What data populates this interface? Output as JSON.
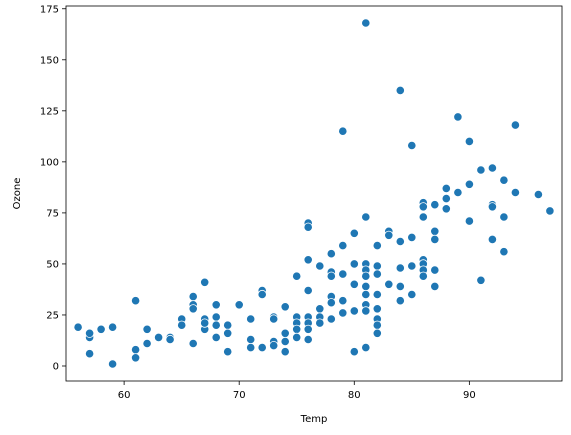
{
  "chart_data": {
    "type": "scatter",
    "title": "",
    "xlabel": "Temp",
    "ylabel": "Ozone",
    "xlim": [
      54.95,
      98.05
    ],
    "ylim": [
      -7.35,
      176.35
    ],
    "xticks": [
      60,
      70,
      80,
      90
    ],
    "yticks": [
      0,
      25,
      50,
      75,
      100,
      125,
      150,
      175
    ],
    "xtick_labels": [
      "60",
      "70",
      "80",
      "90"
    ],
    "ytick_labels": [
      "0",
      "25",
      "50",
      "75",
      "100",
      "125",
      "150",
      "175"
    ],
    "grid": false,
    "legend": "none",
    "marker_color": "#1f77b4",
    "points": [
      {
        "x": 56,
        "y": 19
      },
      {
        "x": 57,
        "y": 14
      },
      {
        "x": 57,
        "y": 16
      },
      {
        "x": 57,
        "y": 6
      },
      {
        "x": 58,
        "y": 18
      },
      {
        "x": 59,
        "y": 19
      },
      {
        "x": 59,
        "y": 1
      },
      {
        "x": 61,
        "y": 32
      },
      {
        "x": 61,
        "y": 8
      },
      {
        "x": 61,
        "y": 4
      },
      {
        "x": 62,
        "y": 18
      },
      {
        "x": 62,
        "y": 11
      },
      {
        "x": 63,
        "y": 14
      },
      {
        "x": 64,
        "y": 14
      },
      {
        "x": 64,
        "y": 13
      },
      {
        "x": 65,
        "y": 23
      },
      {
        "x": 65,
        "y": 20
      },
      {
        "x": 66,
        "y": 34
      },
      {
        "x": 66,
        "y": 30
      },
      {
        "x": 66,
        "y": 28
      },
      {
        "x": 66,
        "y": 11
      },
      {
        "x": 67,
        "y": 41
      },
      {
        "x": 67,
        "y": 23
      },
      {
        "x": 67,
        "y": 18
      },
      {
        "x": 67,
        "y": 21
      },
      {
        "x": 68,
        "y": 30
      },
      {
        "x": 68,
        "y": 24
      },
      {
        "x": 68,
        "y": 20
      },
      {
        "x": 68,
        "y": 14
      },
      {
        "x": 69,
        "y": 20
      },
      {
        "x": 69,
        "y": 16
      },
      {
        "x": 69,
        "y": 7
      },
      {
        "x": 70,
        "y": 30
      },
      {
        "x": 71,
        "y": 23
      },
      {
        "x": 71,
        "y": 13
      },
      {
        "x": 71,
        "y": 9
      },
      {
        "x": 72,
        "y": 37
      },
      {
        "x": 72,
        "y": 35
      },
      {
        "x": 72,
        "y": 9
      },
      {
        "x": 73,
        "y": 24
      },
      {
        "x": 73,
        "y": 23
      },
      {
        "x": 73,
        "y": 12
      },
      {
        "x": 73,
        "y": 10
      },
      {
        "x": 74,
        "y": 29
      },
      {
        "x": 74,
        "y": 16
      },
      {
        "x": 74,
        "y": 12
      },
      {
        "x": 74,
        "y": 7
      },
      {
        "x": 75,
        "y": 44
      },
      {
        "x": 75,
        "y": 24
      },
      {
        "x": 75,
        "y": 21
      },
      {
        "x": 75,
        "y": 18
      },
      {
        "x": 75,
        "y": 14
      },
      {
        "x": 76,
        "y": 70
      },
      {
        "x": 76,
        "y": 68
      },
      {
        "x": 76,
        "y": 52
      },
      {
        "x": 76,
        "y": 37
      },
      {
        "x": 76,
        "y": 24
      },
      {
        "x": 76,
        "y": 21
      },
      {
        "x": 76,
        "y": 18
      },
      {
        "x": 76,
        "y": 13
      },
      {
        "x": 77,
        "y": 49
      },
      {
        "x": 77,
        "y": 28
      },
      {
        "x": 77,
        "y": 24
      },
      {
        "x": 77,
        "y": 21
      },
      {
        "x": 78,
        "y": 55
      },
      {
        "x": 78,
        "y": 46
      },
      {
        "x": 78,
        "y": 44
      },
      {
        "x": 78,
        "y": 34
      },
      {
        "x": 78,
        "y": 31
      },
      {
        "x": 78,
        "y": 23
      },
      {
        "x": 79,
        "y": 115
      },
      {
        "x": 79,
        "y": 59
      },
      {
        "x": 79,
        "y": 45
      },
      {
        "x": 79,
        "y": 32
      },
      {
        "x": 79,
        "y": 26
      },
      {
        "x": 80,
        "y": 65
      },
      {
        "x": 80,
        "y": 50
      },
      {
        "x": 80,
        "y": 40
      },
      {
        "x": 80,
        "y": 27
      },
      {
        "x": 80,
        "y": 7
      },
      {
        "x": 81,
        "y": 168
      },
      {
        "x": 81,
        "y": 73
      },
      {
        "x": 81,
        "y": 50
      },
      {
        "x": 81,
        "y": 47
      },
      {
        "x": 81,
        "y": 44
      },
      {
        "x": 81,
        "y": 39
      },
      {
        "x": 81,
        "y": 35
      },
      {
        "x": 81,
        "y": 30
      },
      {
        "x": 81,
        "y": 27
      },
      {
        "x": 81,
        "y": 9
      },
      {
        "x": 82,
        "y": 59
      },
      {
        "x": 82,
        "y": 49
      },
      {
        "x": 82,
        "y": 45
      },
      {
        "x": 82,
        "y": 35
      },
      {
        "x": 82,
        "y": 28
      },
      {
        "x": 82,
        "y": 23
      },
      {
        "x": 82,
        "y": 20
      },
      {
        "x": 82,
        "y": 16
      },
      {
        "x": 83,
        "y": 66
      },
      {
        "x": 83,
        "y": 64
      },
      {
        "x": 83,
        "y": 40
      },
      {
        "x": 84,
        "y": 135
      },
      {
        "x": 84,
        "y": 61
      },
      {
        "x": 84,
        "y": 48
      },
      {
        "x": 84,
        "y": 39
      },
      {
        "x": 84,
        "y": 32
      },
      {
        "x": 85,
        "y": 108
      },
      {
        "x": 85,
        "y": 63
      },
      {
        "x": 85,
        "y": 49
      },
      {
        "x": 85,
        "y": 35
      },
      {
        "x": 86,
        "y": 80
      },
      {
        "x": 86,
        "y": 78
      },
      {
        "x": 86,
        "y": 73
      },
      {
        "x": 86,
        "y": 52
      },
      {
        "x": 86,
        "y": 50
      },
      {
        "x": 86,
        "y": 47
      },
      {
        "x": 86,
        "y": 44
      },
      {
        "x": 87,
        "y": 79
      },
      {
        "x": 87,
        "y": 66
      },
      {
        "x": 87,
        "y": 62
      },
      {
        "x": 87,
        "y": 47
      },
      {
        "x": 87,
        "y": 39
      },
      {
        "x": 88,
        "y": 87
      },
      {
        "x": 88,
        "y": 82
      },
      {
        "x": 88,
        "y": 77
      },
      {
        "x": 89,
        "y": 122
      },
      {
        "x": 89,
        "y": 85
      },
      {
        "x": 90,
        "y": 110
      },
      {
        "x": 90,
        "y": 89
      },
      {
        "x": 90,
        "y": 71
      },
      {
        "x": 91,
        "y": 96
      },
      {
        "x": 91,
        "y": 42
      },
      {
        "x": 92,
        "y": 97
      },
      {
        "x": 92,
        "y": 79
      },
      {
        "x": 92,
        "y": 78
      },
      {
        "x": 92,
        "y": 62
      },
      {
        "x": 93,
        "y": 91
      },
      {
        "x": 93,
        "y": 73
      },
      {
        "x": 93,
        "y": 56
      },
      {
        "x": 94,
        "y": 118
      },
      {
        "x": 94,
        "y": 85
      },
      {
        "x": 96,
        "y": 84
      },
      {
        "x": 97,
        "y": 76
      }
    ]
  }
}
